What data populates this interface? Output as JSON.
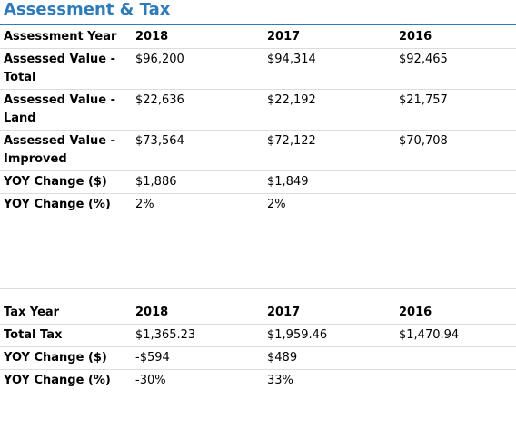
{
  "section": {
    "title": "Assessment & Tax"
  },
  "colors": {
    "accent": "#2f7ab8",
    "rule": "#dcdcdc"
  },
  "assessment": {
    "header": {
      "label": "Assessment Year",
      "years": [
        "2018",
        "2017",
        "2016"
      ]
    },
    "rows": [
      {
        "label": "Assessed Value - Total",
        "values": [
          "$96,200",
          "$94,314",
          "$92,465"
        ]
      },
      {
        "label": "Assessed Value - Land",
        "values": [
          "$22,636",
          "$22,192",
          "$21,757"
        ]
      },
      {
        "label": "Assessed Value - Improved",
        "values": [
          "$73,564",
          "$72,122",
          "$70,708"
        ]
      },
      {
        "label": "YOY Change ($)",
        "values": [
          "$1,886",
          "$1,849",
          ""
        ]
      },
      {
        "label": "YOY Change (%)",
        "values": [
          "2%",
          "2%",
          ""
        ]
      }
    ]
  },
  "tax": {
    "header": {
      "label": "Tax Year",
      "years": [
        "2018",
        "2017",
        "2016"
      ]
    },
    "rows": [
      {
        "label": "Total Tax",
        "values": [
          "$1,365.23",
          "$1,959.46",
          "$1,470.94"
        ]
      },
      {
        "label": "YOY Change ($)",
        "values": [
          "-$594",
          "$489",
          ""
        ]
      },
      {
        "label": "YOY Change (%)",
        "values": [
          "-30%",
          "33%",
          ""
        ]
      }
    ]
  }
}
